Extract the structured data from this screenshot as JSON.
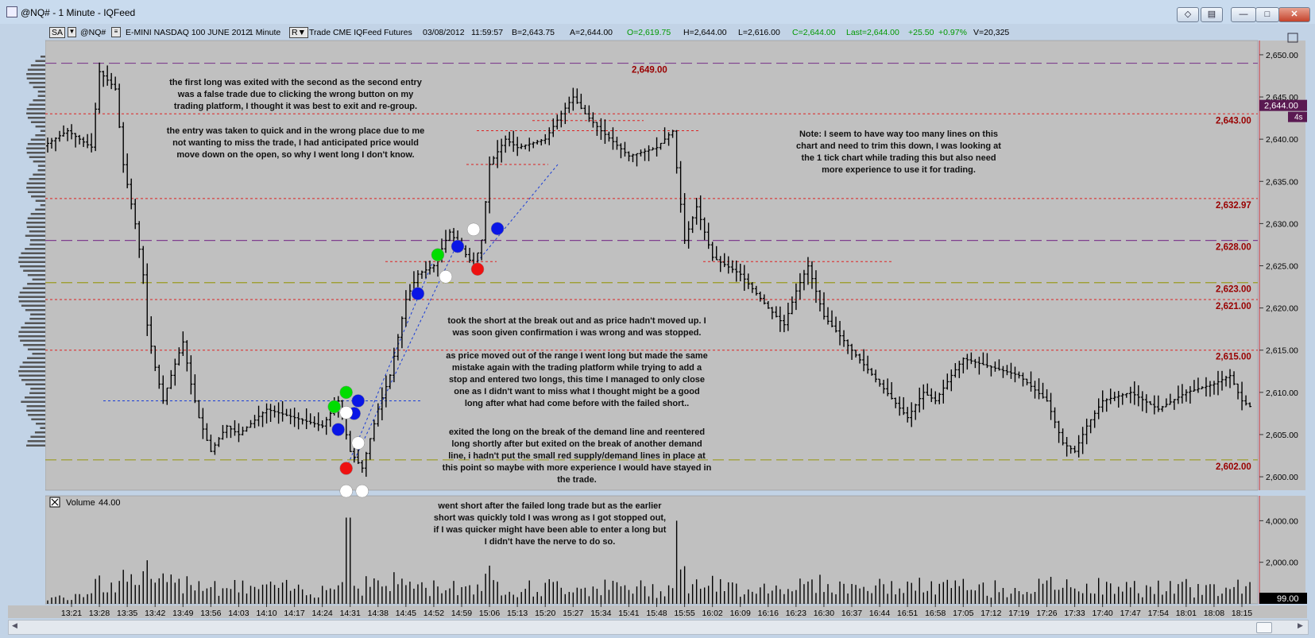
{
  "window": {
    "title": "@NQ# - 1 Minute - IQFeed"
  },
  "toolbar": {
    "sa": "SA",
    "symbol": "@NQ#",
    "description": "E-MINI NASDAQ 100 JUNE 2012",
    "interval": "1 Minute",
    "r_label": "R",
    "source": "Trade  CME  IQFeed  Futures",
    "date": "03/08/2012",
    "time": "11:59:57",
    "bid": "B=2,643.75",
    "ask": "A=2,644.00",
    "open": "O=2,619.75",
    "high": "H=2,644.00",
    "low": "L=2,616.00",
    "close": "C=2,644.00",
    "last": "Last=2,644.00",
    "change": "+25.50",
    "change_pct": "+0.97%",
    "volume": "V=20,325"
  },
  "colors": {
    "chart_bg": "#c0c0c0",
    "green": "#009900",
    "red_label": "#990000",
    "purple_line": "#7f3f8f",
    "red_line": "#dd2222",
    "olive_line": "#9a9a20",
    "blue_line": "#1a3dd6"
  },
  "volume_panel": {
    "label": "Volume",
    "value": "44.00",
    "last_badge": "99.00"
  },
  "price_badges": {
    "last": "2,644.00",
    "timer": "4s"
  },
  "level_labels": [
    {
      "text": "2,649.00",
      "price": 2649.0
    },
    {
      "text": "2,643.00",
      "price": 2643.0
    },
    {
      "text": "2,632.97",
      "price": 2632.97
    },
    {
      "text": "2,628.00",
      "price": 2628.0
    },
    {
      "text": "2,623.00",
      "price": 2623.0
    },
    {
      "text": "2,621.00",
      "price": 2621.0
    },
    {
      "text": "2,615.00",
      "price": 2615.0
    },
    {
      "text": "2,602.00",
      "price": 2602.0
    }
  ],
  "annotations": [
    "the first long was exited with the second as the second entry was a false trade due to clicking the wrong button on my trading platform, I thought it was best to exit and re-group.",
    "the entry was taken to quick and in the wrong place due to me not wanting to miss the trade, I had anticipated price would move down on the open, so why I went long I don't know.",
    "Note: I seem to have way too many lines on this chart and need to trim this down, I was looking at the 1 tick chart while trading this but also need more experience to use it for trading.",
    "took the short at the break out and as price hadn't moved up. I was soon given confirmation i was wrong and was stopped.",
    "as price moved out of the range I went long but made the same mistake again with the trading platform while trying to add a stop and entered two longs, this time I managed to only close one as I didn't want to miss what I thought might be a good long after what had come before with the failed short..",
    "exited the long on the break of the demand line and reentered long shortly after but exited on the break of another demand line, i hadn't put the small red supply/demand lines in place at this point so maybe with more experience I would have stayed in the trade.",
    "went short after the failed long trade but as the earlier short was quickly told I was wrong as I got stopped out, if I was quicker might have been able to enter a long but I didn't have the nerve to do so."
  ],
  "chart_data": {
    "type": "line",
    "title": "",
    "y_axis": {
      "ticks": [
        2600,
        2605,
        2610,
        2615,
        2620,
        2625,
        2630,
        2635,
        2640,
        2645,
        2650
      ],
      "tick_labels": [
        "2,600.00",
        "2,605.00",
        "2,610.00",
        "2,615.00",
        "2,620.00",
        "2,625.00",
        "2,630.00",
        "2,635.00",
        "2,640.00",
        "2,645.00",
        "2,650.00"
      ],
      "ylim": [
        2598.5,
        2651.5
      ]
    },
    "volume_axis": {
      "tick_labels": [
        "2,000.00",
        "4,000.00"
      ],
      "ylim": [
        0,
        5200
      ]
    },
    "x_axis": {
      "tick_labels": [
        "13:21",
        "13:28",
        "13:35",
        "13:42",
        "13:49",
        "13:56",
        "14:03",
        "14:10",
        "14:17",
        "14:24",
        "14:31",
        "14:38",
        "14:45",
        "14:52",
        "14:59",
        "15:06",
        "15:13",
        "15:20",
        "15:27",
        "15:34",
        "15:41",
        "15:48",
        "15:55",
        "16:02",
        "16:09",
        "16:16",
        "16:23",
        "16:30",
        "16:37",
        "16:44",
        "16:51",
        "16:58",
        "17:05",
        "17:12",
        "17:19",
        "17:26",
        "17:33",
        "17:40",
        "17:47",
        "17:54",
        "18:01",
        "18:08",
        "18:15"
      ]
    },
    "price_path": [
      [
        13.0,
        2639
      ],
      [
        13.1,
        2638
      ],
      [
        13.2,
        2641
      ],
      [
        13.26,
        2639
      ],
      [
        13.28,
        2648
      ],
      [
        13.32,
        2646
      ],
      [
        13.34,
        2637
      ],
      [
        13.37,
        2630
      ],
      [
        13.39,
        2624
      ],
      [
        13.4,
        2618
      ],
      [
        13.42,
        2613
      ],
      [
        13.44,
        2609
      ],
      [
        13.46,
        2612
      ],
      [
        13.49,
        2616
      ],
      [
        13.51,
        2611
      ],
      [
        13.53,
        2607
      ],
      [
        13.56,
        2603
      ],
      [
        13.6,
        2606
      ],
      [
        14.03,
        2605
      ],
      [
        14.1,
        2608
      ],
      [
        14.17,
        2607
      ],
      [
        14.24,
        2606
      ],
      [
        14.28,
        2609
      ],
      [
        14.31,
        2603
      ],
      [
        14.34,
        2601
      ],
      [
        14.38,
        2608
      ],
      [
        14.41,
        2612
      ],
      [
        14.45,
        2621
      ],
      [
        14.48,
        2624
      ],
      [
        14.52,
        2625
      ],
      [
        14.56,
        2629
      ],
      [
        14.59,
        2627
      ],
      [
        15.02,
        2625
      ],
      [
        15.04,
        2628
      ],
      [
        15.06,
        2637
      ],
      [
        15.1,
        2640
      ],
      [
        15.13,
        2639
      ],
      [
        15.2,
        2640
      ],
      [
        15.24,
        2643
      ],
      [
        15.27,
        2645
      ],
      [
        15.3,
        2643
      ],
      [
        15.34,
        2641
      ],
      [
        15.41,
        2638
      ],
      [
        15.48,
        2639
      ],
      [
        15.52,
        2641
      ],
      [
        15.55,
        2628
      ],
      [
        15.58,
        2632
      ],
      [
        16.02,
        2626
      ],
      [
        16.09,
        2624
      ],
      [
        16.16,
        2620
      ],
      [
        16.2,
        2618
      ],
      [
        16.23,
        2622
      ],
      [
        16.26,
        2625
      ],
      [
        16.3,
        2619
      ],
      [
        16.37,
        2615
      ],
      [
        16.44,
        2611
      ],
      [
        16.51,
        2607
      ],
      [
        16.55,
        2610
      ],
      [
        16.58,
        2609
      ],
      [
        17.02,
        2612
      ],
      [
        17.05,
        2614
      ],
      [
        17.12,
        2613
      ],
      [
        17.19,
        2612
      ],
      [
        17.26,
        2609
      ],
      [
        17.3,
        2604
      ],
      [
        17.33,
        2603
      ],
      [
        17.36,
        2606
      ],
      [
        17.4,
        2609
      ],
      [
        17.47,
        2610
      ],
      [
        17.54,
        2608
      ],
      [
        18.01,
        2610
      ],
      [
        18.08,
        2611
      ],
      [
        18.12,
        2612
      ],
      [
        18.15,
        2609
      ],
      [
        18.18,
        2608
      ]
    ],
    "price_unit_note": "",
    "markers": [
      {
        "color": "green",
        "time": "14:27",
        "price": 2608.3
      },
      {
        "color": "green",
        "time": "14:30",
        "price": 2610.0
      },
      {
        "color": "blue",
        "time": "14:28",
        "price": 2605.6
      },
      {
        "color": "blue",
        "time": "14:32",
        "price": 2607.5
      },
      {
        "color": "blue",
        "time": "14:33",
        "price": 2609.0
      },
      {
        "color": "white",
        "time": "14:30",
        "price": 2607.6
      },
      {
        "color": "white",
        "time": "14:33",
        "price": 2604.0
      },
      {
        "color": "red",
        "time": "14:30",
        "price": 2601.0
      },
      {
        "color": "white",
        "time": "14:30",
        "price": 2598.3
      },
      {
        "color": "white",
        "time": "14:34",
        "price": 2598.3
      },
      {
        "color": "blue",
        "time": "14:48",
        "price": 2621.7
      },
      {
        "color": "green",
        "time": "14:53",
        "price": 2626.3
      },
      {
        "color": "white",
        "time": "14:55",
        "price": 2623.7
      },
      {
        "color": "blue",
        "time": "14:58",
        "price": 2627.3
      },
      {
        "color": "white",
        "time": "15:02",
        "price": 2629.3
      },
      {
        "color": "red",
        "time": "15:03",
        "price": 2624.6
      },
      {
        "color": "blue",
        "time": "15:08",
        "price": 2629.4
      }
    ]
  }
}
